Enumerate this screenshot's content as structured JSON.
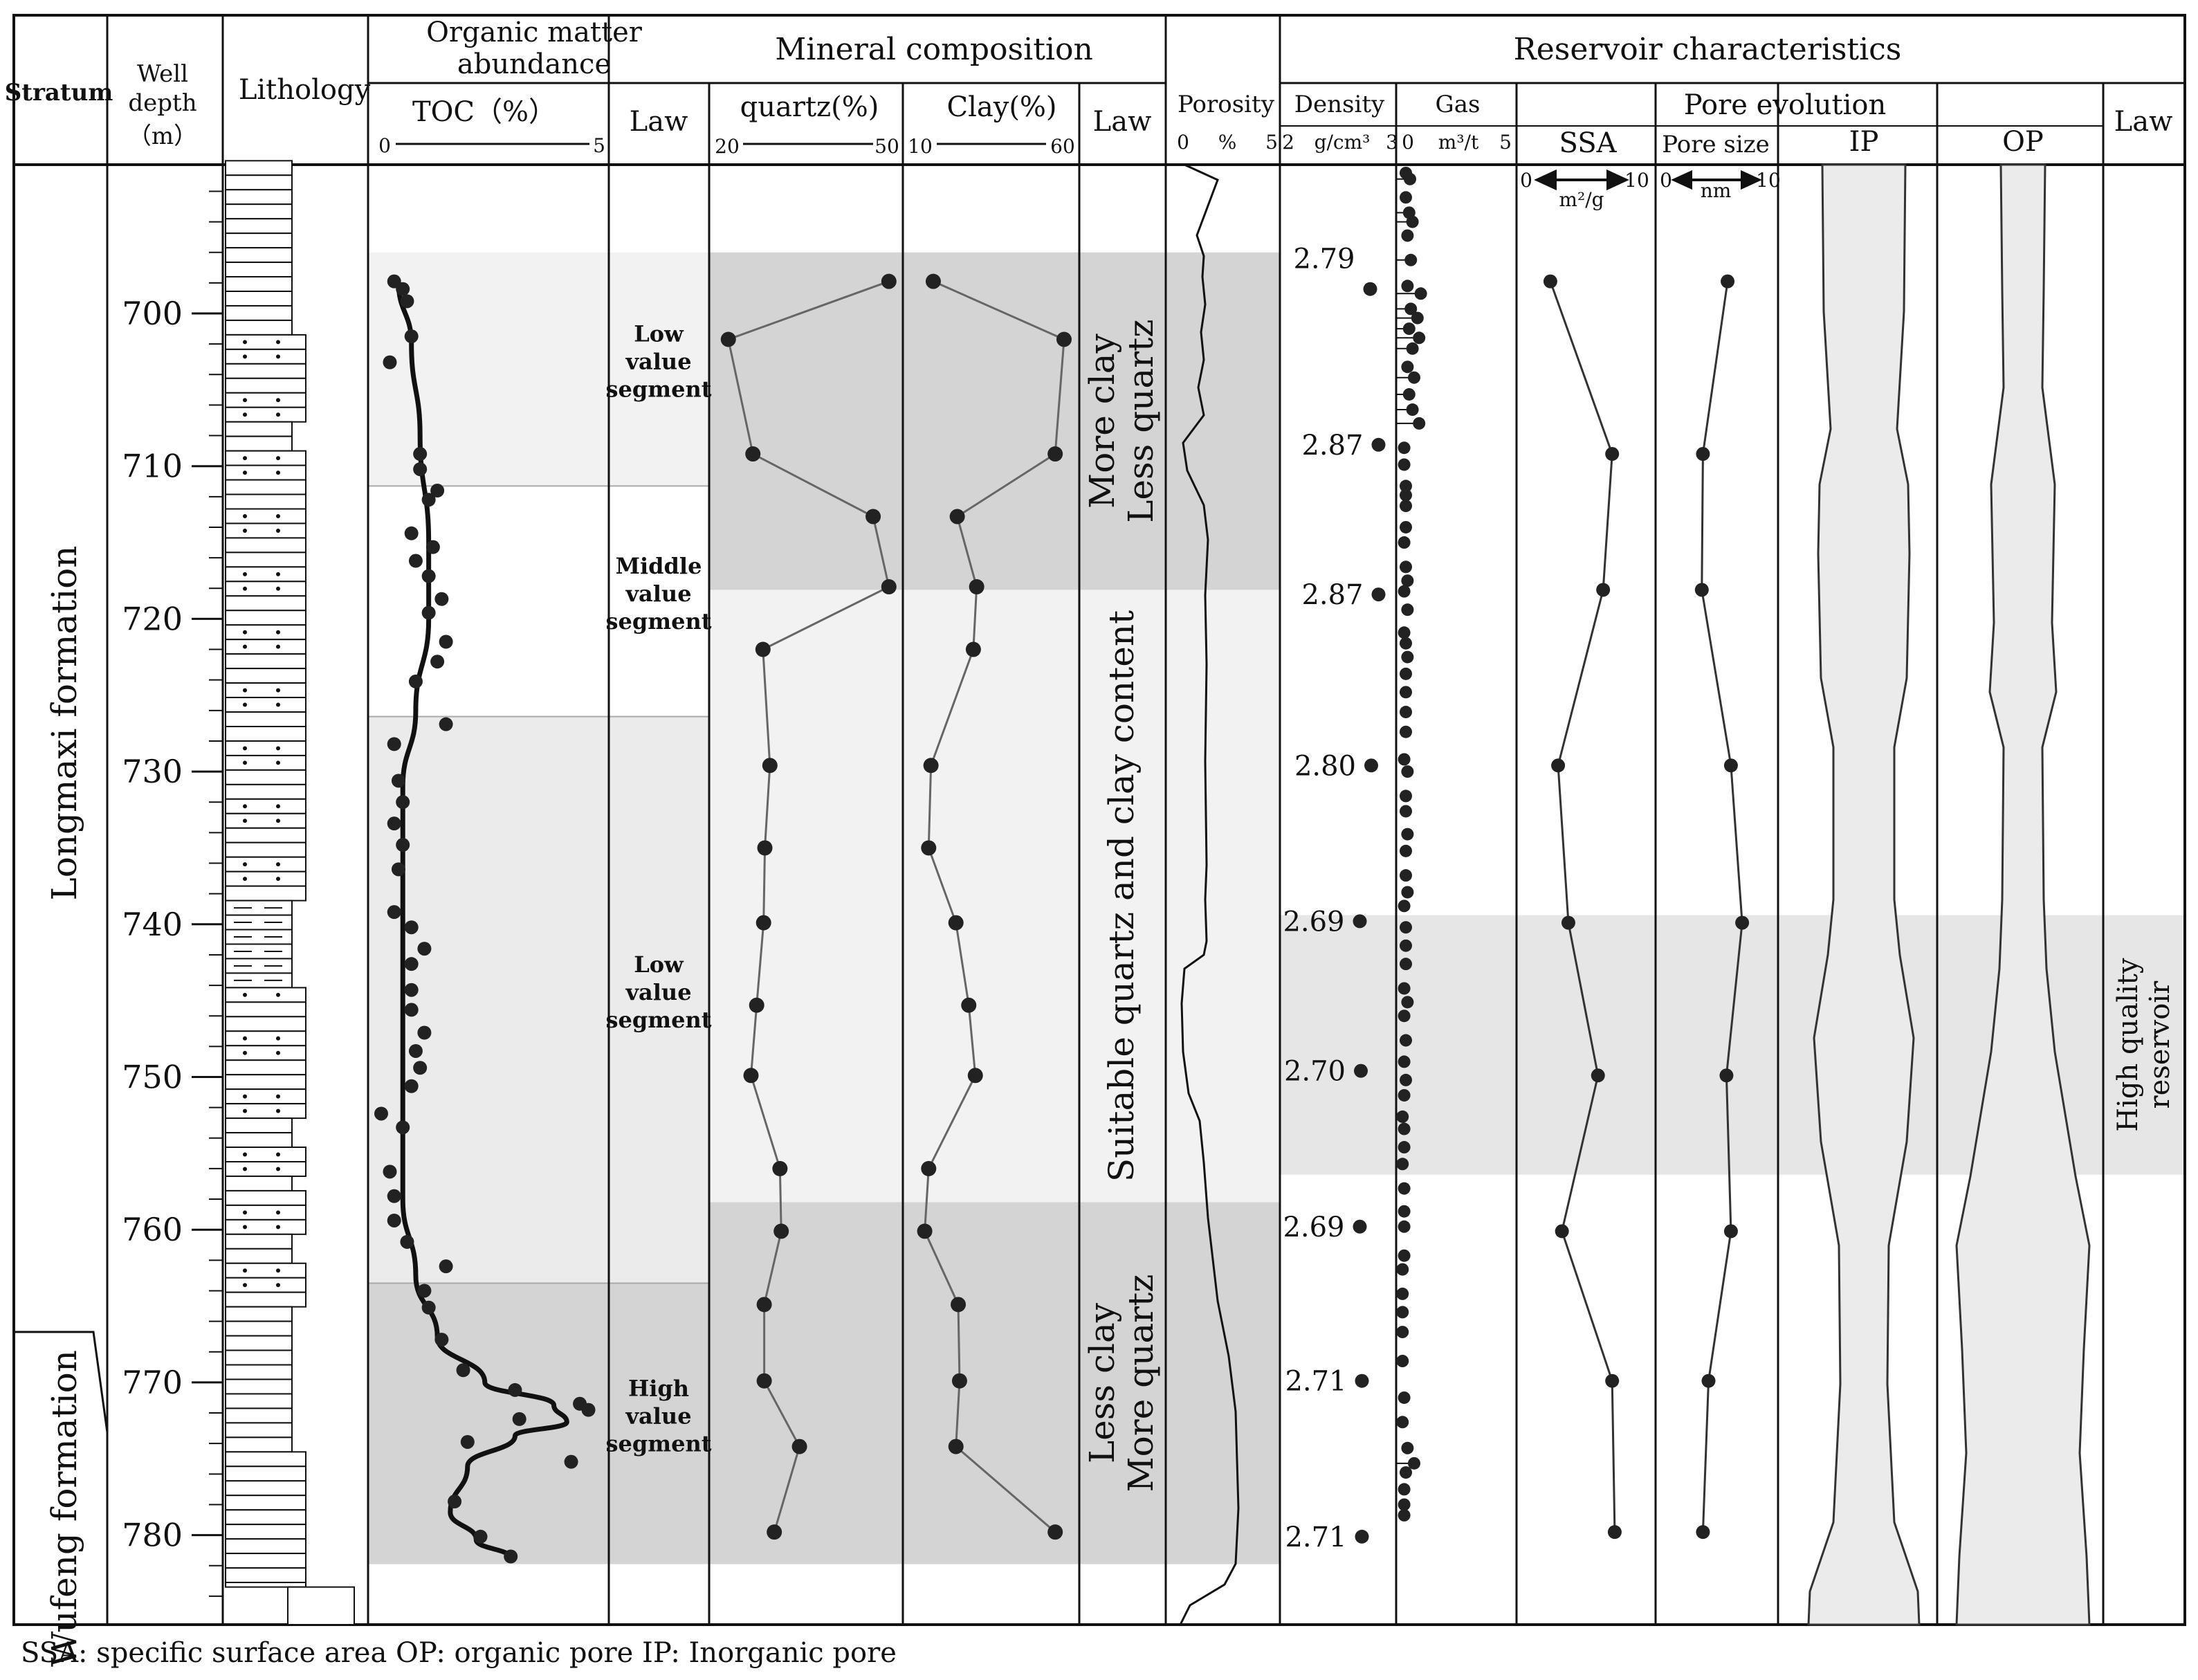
{
  "headers": {
    "stratum": "Stratum",
    "well_depth": [
      "Well",
      "depth",
      "（m）"
    ],
    "lithology": "Lithology",
    "organic": [
      "Organic matter",
      "abundance"
    ],
    "toc": "TOC（%）",
    "toc_min": "0",
    "toc_max": "5",
    "law": "Law",
    "mineral": "Mineral  composition",
    "quartz": "quartz(%)",
    "quartz_min": "20",
    "quartz_max": "50",
    "clay": "Clay(%)",
    "clay_min": "10",
    "clay_max": "60",
    "reservoir": "Reservoir characteristics",
    "porosity": "Porosity",
    "porosity_scale": [
      "0",
      "%",
      "5"
    ],
    "density": "Density",
    "density_scale": [
      "2",
      "g/cm³",
      "3"
    ],
    "gas": "Gas",
    "gas_scale": [
      "0",
      "m³/t",
      "5"
    ],
    "pore_evolution": "Pore evolution",
    "ssa": "SSA",
    "ssa_scale": [
      "0",
      "10",
      "m²/g"
    ],
    "pore_size": "Pore size",
    "pore_scale": [
      "0",
      "10",
      "nm"
    ],
    "ip": "IP",
    "op": "OP"
  },
  "strata": {
    "upper": "Longmaxi formation",
    "lower": "Wufeng formation"
  },
  "depth_ticks": [
    "700",
    "710",
    "720",
    "730",
    "740",
    "750",
    "760",
    "770",
    "780"
  ],
  "toc_segments": [
    {
      "label": [
        "Low",
        "value",
        "segment"
      ],
      "top_m": 696,
      "bottom_m": 711.3,
      "color": "#f2f2f2"
    },
    {
      "label": [
        "Middle",
        "value",
        "segment"
      ],
      "top_m": 711.3,
      "bottom_m": 726.4,
      "color": "#ffffff"
    },
    {
      "label": [
        "Low",
        "value",
        "segment"
      ],
      "top_m": 726.4,
      "bottom_m": 763.5,
      "color": "#ebebeb"
    },
    {
      "label": [
        "High",
        "value",
        "segment"
      ],
      "top_m": 763.5,
      "bottom_m": 781.9,
      "color": "#d4d4d4"
    }
  ],
  "mineral_laws": [
    {
      "label": [
        "More  clay",
        "Less quartz"
      ],
      "top_m": 696,
      "bottom_m": 718.1,
      "color": "#d4d4d4"
    },
    {
      "label": [
        "Suitable quartz and clay content"
      ],
      "top_m": 718.1,
      "bottom_m": 758.2,
      "color": "#f2f2f2"
    },
    {
      "label": [
        "Less  clay",
        "More quartz"
      ],
      "top_m": 758.2,
      "bottom_m": 781.9,
      "color": "#d4d4d4"
    }
  ],
  "high_quality_reservoir": {
    "label": [
      "High quality",
      "reservoir"
    ],
    "top_m": 739.4,
    "bottom_m": 756.4,
    "color": "#e6e6e6"
  },
  "density_labels": [
    {
      "depth": 696.4,
      "text": "2.79"
    },
    {
      "depth": 708.6,
      "text": "2.87"
    },
    {
      "depth": 718.4,
      "text": "2.87"
    },
    {
      "depth": 729.6,
      "text": "2.80"
    },
    {
      "depth": 739.8,
      "text": "2.69"
    },
    {
      "depth": 749.6,
      "text": "2.70"
    },
    {
      "depth": 759.8,
      "text": "2.69"
    },
    {
      "depth": 769.9,
      "text": "2.71"
    },
    {
      "depth": 780.1,
      "text": "2.71"
    }
  ],
  "chart_data": {
    "type": "scatter",
    "y_axis": {
      "label": "Well depth (m)",
      "range": [
        690,
        786
      ]
    },
    "toc_points": [
      {
        "depth": 697.9,
        "toc": 0.3
      },
      {
        "depth": 698.4,
        "toc": 0.5
      },
      {
        "depth": 699.2,
        "toc": 0.6
      },
      {
        "depth": 701.5,
        "toc": 0.7
      },
      {
        "depth": 703.2,
        "toc": 0.2
      },
      {
        "depth": 709.2,
        "toc": 0.9
      },
      {
        "depth": 710.2,
        "toc": 0.9
      },
      {
        "depth": 711.6,
        "toc": 1.3
      },
      {
        "depth": 712.2,
        "toc": 1.1
      },
      {
        "depth": 714.4,
        "toc": 0.7
      },
      {
        "depth": 715.3,
        "toc": 1.2
      },
      {
        "depth": 716.2,
        "toc": 0.8
      },
      {
        "depth": 717.2,
        "toc": 1.1
      },
      {
        "depth": 718.7,
        "toc": 1.4
      },
      {
        "depth": 719.6,
        "toc": 1.1
      },
      {
        "depth": 721.5,
        "toc": 1.5
      },
      {
        "depth": 722.8,
        "toc": 1.3
      },
      {
        "depth": 724.1,
        "toc": 0.8
      },
      {
        "depth": 726.9,
        "toc": 1.5
      },
      {
        "depth": 728.2,
        "toc": 0.3
      },
      {
        "depth": 730.6,
        "toc": 0.4
      },
      {
        "depth": 732.0,
        "toc": 0.5
      },
      {
        "depth": 733.4,
        "toc": 0.3
      },
      {
        "depth": 734.8,
        "toc": 0.5
      },
      {
        "depth": 736.4,
        "toc": 0.4
      },
      {
        "depth": 739.2,
        "toc": 0.3
      },
      {
        "depth": 740.2,
        "toc": 0.7
      },
      {
        "depth": 741.6,
        "toc": 1.0
      },
      {
        "depth": 742.6,
        "toc": 0.7
      },
      {
        "depth": 744.3,
        "toc": 0.7
      },
      {
        "depth": 745.6,
        "toc": 0.7
      },
      {
        "depth": 747.1,
        "toc": 1.0
      },
      {
        "depth": 748.3,
        "toc": 0.8
      },
      {
        "depth": 749.4,
        "toc": 0.9
      },
      {
        "depth": 750.6,
        "toc": 0.7
      },
      {
        "depth": 752.4,
        "toc": 0.0
      },
      {
        "depth": 753.3,
        "toc": 0.5
      },
      {
        "depth": 756.2,
        "toc": 0.2
      },
      {
        "depth": 757.8,
        "toc": 0.3
      },
      {
        "depth": 759.4,
        "toc": 0.3
      },
      {
        "depth": 760.8,
        "toc": 0.6
      },
      {
        "depth": 762.4,
        "toc": 1.5
      },
      {
        "depth": 764.0,
        "toc": 1.0
      },
      {
        "depth": 765.1,
        "toc": 1.1
      },
      {
        "depth": 767.2,
        "toc": 1.4
      },
      {
        "depth": 769.2,
        "toc": 1.9
      },
      {
        "depth": 770.5,
        "toc": 3.1
      },
      {
        "depth": 771.4,
        "toc": 4.6
      },
      {
        "depth": 771.8,
        "toc": 4.8
      },
      {
        "depth": 772.4,
        "toc": 3.2
      },
      {
        "depth": 773.9,
        "toc": 2.0
      },
      {
        "depth": 775.2,
        "toc": 4.4
      },
      {
        "depth": 777.8,
        "toc": 1.7
      },
      {
        "depth": 780.1,
        "toc": 2.3
      },
      {
        "depth": 781.4,
        "toc": 3.0
      }
    ],
    "toc_trend": [
      {
        "depth": 697.9,
        "toc": 0.4
      },
      {
        "depth": 702,
        "toc": 0.7
      },
      {
        "depth": 708,
        "toc": 0.9
      },
      {
        "depth": 715,
        "toc": 1.1
      },
      {
        "depth": 720,
        "toc": 1.1
      },
      {
        "depth": 726,
        "toc": 0.8
      },
      {
        "depth": 731,
        "toc": 0.5
      },
      {
        "depth": 740,
        "toc": 0.5
      },
      {
        "depth": 750,
        "toc": 0.5
      },
      {
        "depth": 758,
        "toc": 0.5
      },
      {
        "depth": 763,
        "toc": 0.8
      },
      {
        "depth": 767,
        "toc": 1.3
      },
      {
        "depth": 770,
        "toc": 2.4
      },
      {
        "depth": 771.5,
        "toc": 4.0
      },
      {
        "depth": 772.6,
        "toc": 4.3
      },
      {
        "depth": 773.5,
        "toc": 3.1
      },
      {
        "depth": 775.5,
        "toc": 2.0
      },
      {
        "depth": 778.5,
        "toc": 1.6
      },
      {
        "depth": 780.3,
        "toc": 2.2
      },
      {
        "depth": 781.5,
        "toc": 3.0
      }
    ],
    "quartz": [
      {
        "depth": 697.9,
        "value": 48.0
      },
      {
        "depth": 701.7,
        "value": 22.5
      },
      {
        "depth": 709.2,
        "value": 26.4
      },
      {
        "depth": 713.3,
        "value": 45.5
      },
      {
        "depth": 717.9,
        "value": 48.0
      },
      {
        "depth": 722.0,
        "value": 28.0
      },
      {
        "depth": 729.6,
        "value": 29.1
      },
      {
        "depth": 735.0,
        "value": 28.3
      },
      {
        "depth": 739.9,
        "value": 28.1
      },
      {
        "depth": 745.3,
        "value": 27.0
      },
      {
        "depth": 749.9,
        "value": 26.1
      },
      {
        "depth": 756.0,
        "value": 30.7
      },
      {
        "depth": 760.1,
        "value": 30.9
      },
      {
        "depth": 764.9,
        "value": 28.2
      },
      {
        "depth": 769.9,
        "value": 28.2
      },
      {
        "depth": 774.2,
        "value": 33.8
      },
      {
        "depth": 779.8,
        "value": 29.8
      }
    ],
    "clay": [
      {
        "depth": 697.9,
        "value": 18.2
      },
      {
        "depth": 701.7,
        "value": 58.0
      },
      {
        "depth": 709.2,
        "value": 55.3
      },
      {
        "depth": 713.3,
        "value": 25.5
      },
      {
        "depth": 717.9,
        "value": 31.4
      },
      {
        "depth": 722.0,
        "value": 30.4
      },
      {
        "depth": 729.6,
        "value": 17.5
      },
      {
        "depth": 735.0,
        "value": 16.8
      },
      {
        "depth": 739.9,
        "value": 25.1
      },
      {
        "depth": 745.3,
        "value": 29.0
      },
      {
        "depth": 749.9,
        "value": 31.0
      },
      {
        "depth": 756.0,
        "value": 16.8
      },
      {
        "depth": 760.1,
        "value": 15.6
      },
      {
        "depth": 764.9,
        "value": 25.8
      },
      {
        "depth": 769.9,
        "value": 26.2
      },
      {
        "depth": 774.2,
        "value": 25.1
      },
      {
        "depth": 779.8,
        "value": 55.3
      }
    ],
    "density": [
      {
        "depth": 698.4,
        "value": 2.79
      },
      {
        "depth": 708.6,
        "value": 2.87
      },
      {
        "depth": 718.4,
        "value": 2.87
      },
      {
        "depth": 729.6,
        "value": 2.8
      },
      {
        "depth": 739.8,
        "value": 2.69
      },
      {
        "depth": 749.6,
        "value": 2.7
      },
      {
        "depth": 759.8,
        "value": 2.69
      },
      {
        "depth": 769.9,
        "value": 2.71
      },
      {
        "depth": 780.1,
        "value": 2.71
      }
    ],
    "ssa": [
      {
        "depth": 697.9,
        "value": 2.2
      },
      {
        "depth": 709.2,
        "value": 7.0
      },
      {
        "depth": 718.1,
        "value": 6.3
      },
      {
        "depth": 729.6,
        "value": 2.8
      },
      {
        "depth": 739.9,
        "value": 3.6
      },
      {
        "depth": 749.9,
        "value": 5.9
      },
      {
        "depth": 760.1,
        "value": 3.1
      },
      {
        "depth": 769.9,
        "value": 7.0
      },
      {
        "depth": 779.8,
        "value": 7.2
      }
    ],
    "pore_size": [
      {
        "depth": 697.9,
        "value": 6.3
      },
      {
        "depth": 709.2,
        "value": 4.1
      },
      {
        "depth": 718.1,
        "value": 4.0
      },
      {
        "depth": 729.6,
        "value": 6.6
      },
      {
        "depth": 739.9,
        "value": 7.6
      },
      {
        "depth": 749.9,
        "value": 6.2
      },
      {
        "depth": 760.1,
        "value": 6.6
      },
      {
        "depth": 769.9,
        "value": 4.6
      },
      {
        "depth": 779.8,
        "value": 4.1
      }
    ],
    "gas": [
      {
        "depth": 690.8,
        "value": 1.0
      },
      {
        "depth": 691.2,
        "value": 1.5
      },
      {
        "depth": 692.4,
        "value": 1.0
      },
      {
        "depth": 693.4,
        "value": 1.4
      },
      {
        "depth": 694.0,
        "value": 1.8
      },
      {
        "depth": 694.9,
        "value": 1.2
      },
      {
        "depth": 696.5,
        "value": 1.6
      },
      {
        "depth": 698.2,
        "value": 1.2
      },
      {
        "depth": 698.7,
        "value": 2.8
      },
      {
        "depth": 699.7,
        "value": 1.6
      },
      {
        "depth": 700.3,
        "value": 2.4
      },
      {
        "depth": 701.0,
        "value": 1.4
      },
      {
        "depth": 701.6,
        "value": 2.6
      },
      {
        "depth": 702.3,
        "value": 1.8
      },
      {
        "depth": 703.5,
        "value": 1.2
      },
      {
        "depth": 704.2,
        "value": 2.0
      },
      {
        "depth": 705.3,
        "value": 1.4
      },
      {
        "depth": 706.3,
        "value": 1.8
      },
      {
        "depth": 707.2,
        "value": 2.6
      },
      {
        "depth": 708.8,
        "value": 0.8
      },
      {
        "depth": 709.9,
        "value": 0.8
      },
      {
        "depth": 711.3,
        "value": 1.0
      },
      {
        "depth": 711.9,
        "value": 1.0
      },
      {
        "depth": 712.6,
        "value": 1.0
      },
      {
        "depth": 714.0,
        "value": 1.0
      },
      {
        "depth": 715.0,
        "value": 0.8
      },
      {
        "depth": 716.6,
        "value": 1.0
      },
      {
        "depth": 717.5,
        "value": 1.2
      },
      {
        "depth": 718.2,
        "value": 0.8
      },
      {
        "depth": 719.4,
        "value": 1.2
      },
      {
        "depth": 720.9,
        "value": 0.8
      },
      {
        "depth": 721.6,
        "value": 1.0
      },
      {
        "depth": 722.5,
        "value": 1.2
      },
      {
        "depth": 723.6,
        "value": 1.0
      },
      {
        "depth": 724.8,
        "value": 1.0
      },
      {
        "depth": 726.1,
        "value": 1.0
      },
      {
        "depth": 727.4,
        "value": 1.0
      },
      {
        "depth": 729.2,
        "value": 0.8
      },
      {
        "depth": 730.0,
        "value": 1.2
      },
      {
        "depth": 731.6,
        "value": 1.0
      },
      {
        "depth": 732.6,
        "value": 1.0
      },
      {
        "depth": 734.1,
        "value": 1.2
      },
      {
        "depth": 735.2,
        "value": 1.0
      },
      {
        "depth": 736.8,
        "value": 1.0
      },
      {
        "depth": 737.9,
        "value": 1.2
      },
      {
        "depth": 738.8,
        "value": 0.8
      },
      {
        "depth": 740.2,
        "value": 1.0
      },
      {
        "depth": 741.4,
        "value": 1.0
      },
      {
        "depth": 742.6,
        "value": 1.0
      },
      {
        "depth": 744.2,
        "value": 0.8
      },
      {
        "depth": 745.1,
        "value": 1.2
      },
      {
        "depth": 746.0,
        "value": 0.8
      },
      {
        "depth": 747.6,
        "value": 1.0
      },
      {
        "depth": 749.0,
        "value": 0.8
      },
      {
        "depth": 750.2,
        "value": 1.0
      },
      {
        "depth": 751.2,
        "value": 0.8
      },
      {
        "depth": 752.6,
        "value": 0.6
      },
      {
        "depth": 753.4,
        "value": 0.8
      },
      {
        "depth": 754.6,
        "value": 0.8
      },
      {
        "depth": 755.7,
        "value": 0.6
      },
      {
        "depth": 757.3,
        "value": 0.8
      },
      {
        "depth": 758.8,
        "value": 0.8
      },
      {
        "depth": 759.8,
        "value": 0.8
      },
      {
        "depth": 761.7,
        "value": 0.8
      },
      {
        "depth": 762.6,
        "value": 0.6
      },
      {
        "depth": 764.2,
        "value": 0.6
      },
      {
        "depth": 765.4,
        "value": 0.6
      },
      {
        "depth": 766.7,
        "value": 0.6
      },
      {
        "depth": 768.6,
        "value": 0.6
      },
      {
        "depth": 771.0,
        "value": 0.8
      },
      {
        "depth": 772.6,
        "value": 0.6
      },
      {
        "depth": 774.3,
        "value": 1.2
      },
      {
        "depth": 775.3,
        "value": 2.0
      },
      {
        "depth": 775.9,
        "value": 1.0
      },
      {
        "depth": 777.0,
        "value": 0.8
      },
      {
        "depth": 778.0,
        "value": 0.8
      },
      {
        "depth": 778.7,
        "value": 0.8
      }
    ]
  },
  "legend": "SSA: specific surface area    OP: organic  pore     IP: Inorganic  pore"
}
